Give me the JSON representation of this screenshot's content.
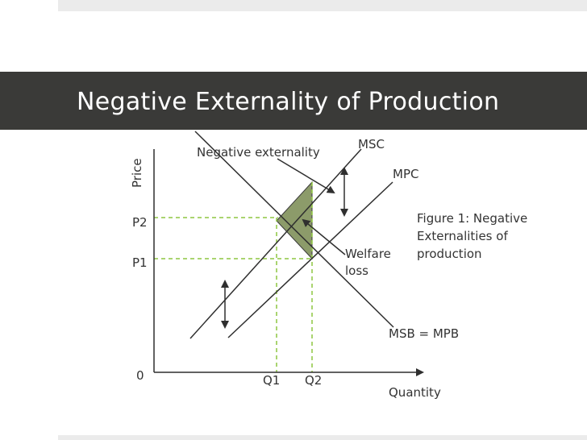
{
  "slide": {
    "title": "Negative Externality of Production"
  },
  "diagram": {
    "axis": {
      "y_label": "Price",
      "x_label": "Quantity",
      "origin_label": "0"
    },
    "curves": {
      "msc": "MSC",
      "mpc": "MPC",
      "msb_mpb": "MSB = MPB"
    },
    "levels": {
      "p2": "P2",
      "p1": "P1",
      "q1": "Q1",
      "q2": "Q2"
    },
    "annotations": {
      "negative_externality": "Negative externality",
      "welfare_loss_line1": "Welfare",
      "welfare_loss_line2": "loss",
      "figure_caption_line1": "Figure 1: Negative",
      "figure_caption_line2": "Externalities of",
      "figure_caption_line3": "production"
    },
    "colors": {
      "lines": "#2f2f2f",
      "dashed": "#8ec641",
      "welfare_fill": "#8c9b6a",
      "arrows": "#2f2f2f"
    }
  }
}
